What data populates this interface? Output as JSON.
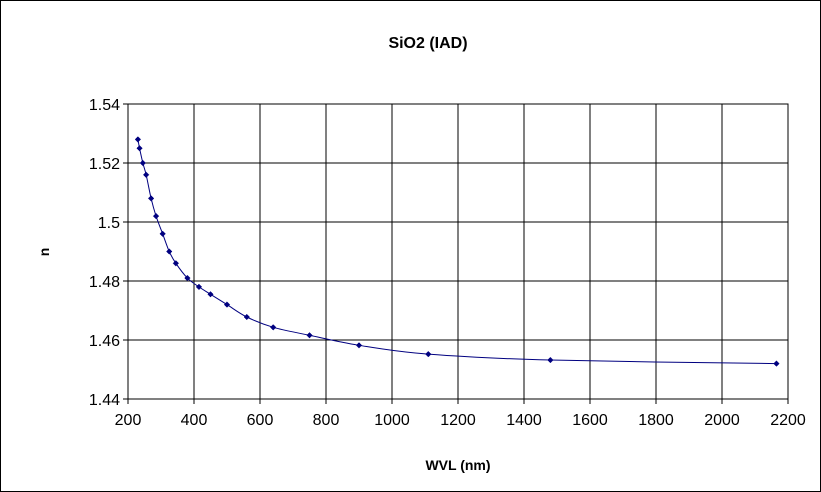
{
  "chart_data": {
    "type": "line",
    "title": "SiO2 (IAD)",
    "xlabel": "WVL (nm)",
    "ylabel": "n",
    "xlim": [
      200,
      2200
    ],
    "ylim": [
      1.44,
      1.54
    ],
    "x_ticks": [
      200,
      400,
      600,
      800,
      1000,
      1200,
      1400,
      1600,
      1800,
      2000,
      2200
    ],
    "x_tick_labels": [
      "200",
      "400",
      "600",
      "800",
      "1000",
      "1200",
      "1400",
      "1600",
      "1800",
      "2000",
      "2200"
    ],
    "y_ticks": [
      1.44,
      1.46,
      1.48,
      1.5,
      1.52,
      1.54
    ],
    "y_tick_labels": [
      "1.44",
      "1.46",
      "1.48",
      "1.5",
      "1.52",
      "1.54"
    ],
    "grid": true,
    "legend": "none",
    "series": [
      {
        "color": "#000080",
        "marker": "diamond",
        "points": [
          [
            230,
            1.528
          ],
          [
            235,
            1.525
          ],
          [
            245,
            1.52
          ],
          [
            255,
            1.516
          ],
          [
            270,
            1.508
          ],
          [
            285,
            1.502
          ],
          [
            305,
            1.496
          ],
          [
            325,
            1.49
          ],
          [
            345,
            1.486
          ],
          [
            380,
            1.481
          ],
          [
            415,
            1.478
          ],
          [
            450,
            1.4755
          ],
          [
            500,
            1.472
          ],
          [
            560,
            1.4678
          ],
          [
            640,
            1.4643
          ],
          [
            750,
            1.4616
          ],
          [
            900,
            1.4582
          ],
          [
            1110,
            1.4552
          ],
          [
            1480,
            1.4532
          ],
          [
            2165,
            1.452
          ]
        ]
      }
    ]
  }
}
